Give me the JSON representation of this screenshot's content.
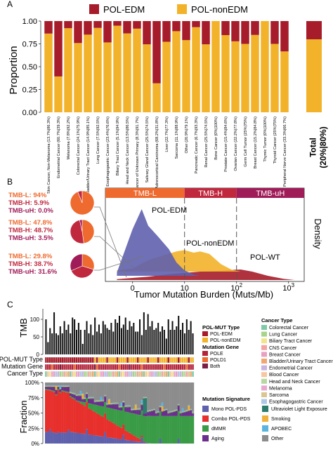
{
  "colors": {
    "pol_edm": "#a61c2a",
    "pol_nonedm": "#f2b32a",
    "pol_wt": "#a61c2a",
    "tmb_l": "#ee6a2f",
    "tmb_h": "#c0283e",
    "tmb_uh": "#a01c58",
    "pole": "#b4253b",
    "pold1": "#ee6a2f",
    "both": "#7b1e45",
    "mono_pol_pds": "#5f61ad",
    "combo_pol_pds": "#e7302c",
    "dmmr": "#3a9b46",
    "aging": "#6c2e8d",
    "uv": "#2c7d6e",
    "smoking": "#efb23a",
    "apobec": "#5ab4e0",
    "other": "#8c8c8c"
  },
  "panel_a": {
    "label": "A",
    "legend": [
      "POL-EDM",
      "POL-nonEDM"
    ],
    "ylabel": "Proportion",
    "total_label": "Total\n(20%|80%)"
  },
  "panel_b": {
    "label": "B",
    "bands": [
      "TMB-L",
      "TMB-H",
      "TMB-uH"
    ],
    "curve_labels": [
      "POL-EDM",
      "POL-nonEDM",
      "POL-WT"
    ],
    "side_label": "Density",
    "xlabel": "Tumor Mutation Burden (Muts/Mb)",
    "xticks": [
      "0",
      "10",
      "10",
      "10"
    ],
    "xtick_exp": [
      "",
      "",
      "2",
      "3"
    ],
    "groups": [
      [
        "TMB-L: 94%",
        "TMB-H: 5.9%",
        "TMB-uH: 0.0%"
      ],
      [
        "TMB-L: 47.8%",
        "TMB-H: 48.7%",
        "TMB-uH: 3.5%"
      ],
      [
        "TMB-L: 29.8%",
        "TMB-H: 38.7%",
        "TMB-uH: 31.6%"
      ]
    ]
  },
  "panel_c": {
    "label": "C",
    "tmb_label": "TMB",
    "tmb_ticks": [
      "100",
      "50",
      "0"
    ],
    "track_labels": [
      "POL-MUT Type",
      "Mutation Gene",
      "Cancer Type"
    ],
    "fraction_label": "Fraction",
    "fraction_ticks": [
      "100%",
      "75%",
      "50%",
      "25%",
      "0%"
    ],
    "legend_polmut_title": "POL-MUT Type",
    "legend_polmut": [
      "POL-EDM",
      "POL-nonEDM"
    ],
    "legend_gene_title": "Mutation Gene",
    "legend_gene": [
      "POLE",
      "POLD1",
      "Both"
    ],
    "legend_cancer_title": "Cancer Type",
    "legend_cancer": [
      "Colorectal Cancer",
      "Lung Cancer",
      "Biliary Tract Cancer",
      "CNS Cancer",
      "Breast Cancer",
      "Bladder/Urinary Tract Cancer",
      "Endometrial Cancer",
      "Blood Cancer",
      "Head and Neck Cancer",
      "Melanoma",
      "Sarcoma",
      "Esophagogastric Cancer"
    ],
    "legend_sig_title": "Mutation Signature",
    "legend_sig": [
      "Mono POL-PDS",
      "Combo POL-PDS",
      "dMMR",
      "Aging",
      "Ultraviolet Light Exposure",
      "Smoking",
      "APOBEC",
      "Other"
    ]
  },
  "chart_data": [
    {
      "type": "bar",
      "title": "",
      "ylabel": "Proportion",
      "ylim": [
        0,
        1
      ],
      "yticks": [
        "0.00",
        "0.25",
        "0.50",
        "0.75",
        "1.00"
      ],
      "series": [
        {
          "name": "POL-EDM"
        },
        {
          "name": "POL-nonEDM"
        }
      ],
      "categories": [
        "Skin Cancer, Non-Melanoma (13.7%|86.3%)",
        "Endometrial Cancer (60.7%|39.3%)",
        "Melanoma (7.8%|92.2%)",
        "Colorectal Cancer (24.1%|75.9%)",
        "Bladder/Urinary Tract Cancer (14.9%|85.1%)",
        "Lung Cancer (7.5%|92.5%)",
        "Esophagogastric Cancer (23.4%|76.6%)",
        "Biliary Tract Cancer (5.1%|94.9%)",
        "Head and Neck Cancer (13.5%|86.5%)",
        "Cancer of Unknown Primary (8.3%|91.7%)",
        "Salivary Gland Cancer (25.5%|74.5%)",
        "Adrenocortical Carcinoma (68.2%|31.8%)",
        "Liver (22.7%|77.3%)",
        "Sarcoma (11.1%|88.9%)",
        "Other (20.9%|79.1%)",
        "Pancreatic Cancer (6.7%|93.3%)",
        "Renal Cancer (25.5%|74.5%)",
        "Bone Cancer (0%|100%)",
        "Prostate Cancer (15.4%|84.6%)",
        "Ovarian Cancer (22.2%|77.8%)",
        "Germ Cell Tumor (25%|75%)",
        "Breast Cancer (15.2%|84.8%)",
        "Thymic Tumor (0%|100%)",
        "Thyroid Cancer (25%|75%)",
        "Peripheral Nerve Cancer (33.3%|66.7%)"
      ],
      "values_edm": [
        0.137,
        0.607,
        0.078,
        0.241,
        0.149,
        0.075,
        0.234,
        0.051,
        0.135,
        0.083,
        0.255,
        0.682,
        0.227,
        0.111,
        0.209,
        0.067,
        0.255,
        0.0,
        0.154,
        0.222,
        0.25,
        0.152,
        0.0,
        0.25,
        0.333
      ],
      "values_nonedm": [
        0.863,
        0.393,
        0.922,
        0.759,
        0.851,
        0.925,
        0.766,
        0.949,
        0.865,
        0.917,
        0.745,
        0.318,
        0.773,
        0.889,
        0.791,
        0.933,
        0.745,
        1.0,
        0.846,
        0.778,
        0.75,
        0.848,
        1.0,
        0.75,
        0.667
      ],
      "total": {
        "label": "Total (20%|80%)",
        "edm": 0.2,
        "nonedm": 0.8
      }
    },
    {
      "type": "area",
      "title": "",
      "xlabel": "Tumor Mutation Burden (Muts/Mb)",
      "ylabel": "Density",
      "xscale": "log",
      "xlim": [
        0.3,
        2000
      ],
      "thresholds": [
        10,
        100
      ],
      "series": [
        {
          "name": "POL-EDM",
          "x": [
            0.5,
            1,
            1.5,
            2,
            3,
            5,
            7,
            10,
            15,
            20,
            30
          ],
          "y": [
            0.05,
            0.7,
            1.0,
            0.75,
            0.6,
            0.4,
            0.2,
            0.08,
            0.02,
            0,
            0
          ]
        },
        {
          "name": "POL-nonEDM",
          "x": [
            0.5,
            1,
            2,
            4,
            7,
            10,
            15,
            20,
            30,
            50,
            80,
            120
          ],
          "y": [
            0.02,
            0.05,
            0.18,
            0.26,
            0.32,
            0.34,
            0.3,
            0.32,
            0.28,
            0.12,
            0.03,
            0
          ]
        },
        {
          "name": "POL-WT",
          "x": [
            0.5,
            1,
            2,
            5,
            10,
            20,
            50,
            80,
            120,
            200,
            400,
            800,
            1300
          ],
          "y": [
            0.02,
            0.05,
            0.08,
            0.14,
            0.17,
            0.2,
            0.22,
            0.24,
            0.25,
            0.2,
            0.1,
            0.03,
            0
          ]
        }
      ]
    },
    {
      "type": "bar",
      "title": "",
      "ylabel": "TMB",
      "ylim": [
        0,
        130
      ],
      "values": [
        100,
        35,
        75,
        60,
        120,
        60,
        55,
        80,
        60,
        95,
        70,
        85,
        60,
        105,
        100,
        70,
        90,
        70,
        30,
        70,
        95,
        60,
        85,
        55,
        105,
        65,
        85,
        60,
        95,
        85,
        75,
        70,
        90,
        65,
        100,
        90,
        110,
        75,
        85,
        105,
        70,
        95,
        80,
        90,
        65,
        65,
        100,
        55,
        120,
        70,
        115,
        80,
        95,
        70,
        75,
        90,
        65,
        80,
        70,
        45,
        100,
        70,
        95,
        70,
        80,
        110,
        70,
        90,
        60,
        100,
        70,
        95,
        60
      ]
    },
    {
      "type": "bar",
      "title": "",
      "ylabel": "Fraction",
      "ylim": [
        0,
        1
      ],
      "series": [
        {
          "name": "Mono POL-PDS"
        },
        {
          "name": "Combo POL-PDS"
        },
        {
          "name": "dMMR"
        },
        {
          "name": "Aging"
        },
        {
          "name": "Ultraviolet Light Exposure"
        },
        {
          "name": "Smoking"
        },
        {
          "name": "APOBEC"
        },
        {
          "name": "Other"
        }
      ],
      "samples": 73
    }
  ]
}
